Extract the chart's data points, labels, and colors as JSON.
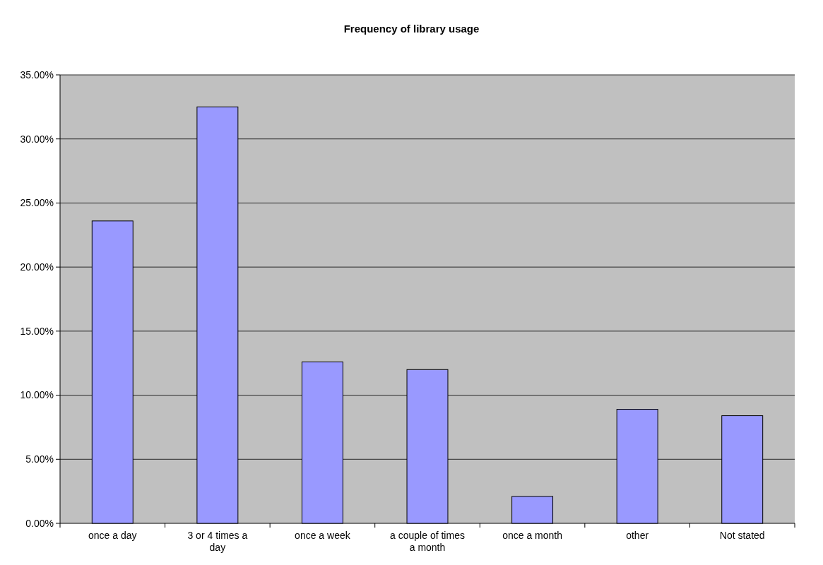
{
  "chart_data": {
    "type": "bar",
    "title": "Frequency of library usage",
    "categories": [
      "once a day",
      "3 or 4 times a day",
      "once a week",
      "a couple of times a month",
      "once a month",
      "other",
      "Not stated"
    ],
    "values": [
      23.6,
      32.5,
      12.6,
      12.0,
      2.1,
      8.9,
      8.4
    ],
    "color": "#9999ff",
    "ylim": [
      0,
      35
    ],
    "yticks": [
      {
        "value": 0,
        "label": "0.00%"
      },
      {
        "value": 5,
        "label": "5.00%"
      },
      {
        "value": 10,
        "label": "10.00%"
      },
      {
        "value": 15,
        "label": "15.00%"
      },
      {
        "value": 20,
        "label": "20.00%"
      },
      {
        "value": 25,
        "label": "25.00%"
      },
      {
        "value": 30,
        "label": "30.00%"
      },
      {
        "value": 35,
        "label": "35.00%"
      }
    ],
    "grid": true
  }
}
